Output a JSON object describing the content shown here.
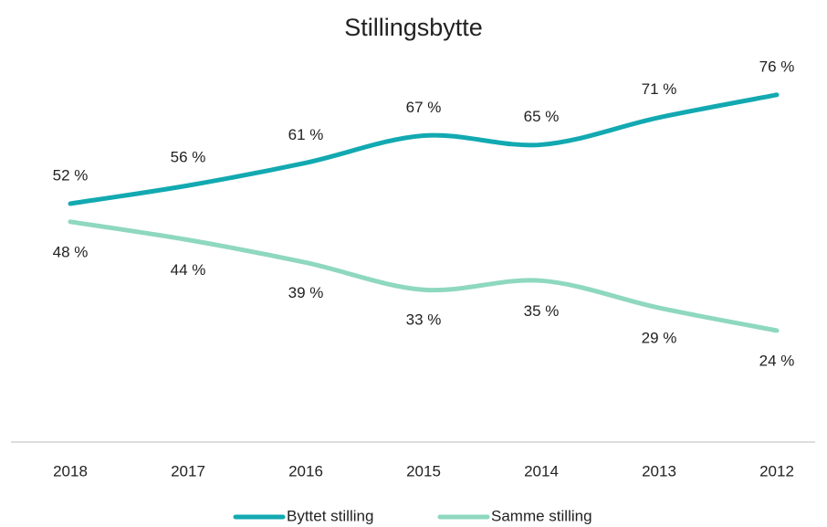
{
  "chart_data": {
    "type": "line",
    "title": "Stillingsbytte",
    "categories": [
      "2018",
      "2017",
      "2016",
      "2015",
      "2014",
      "2013",
      "2012"
    ],
    "series": [
      {
        "name": "Byttet stilling",
        "color": "#12a9b1",
        "values": [
          52,
          56,
          61,
          67,
          65,
          71,
          76
        ],
        "value_labels": [
          "52 %",
          "56 %",
          "61 %",
          "67 %",
          "65 %",
          "71 %",
          "76 %"
        ]
      },
      {
        "name": "Samme stilling",
        "color": "#8ed8bf",
        "values": [
          48,
          44,
          39,
          33,
          35,
          29,
          24
        ],
        "value_labels": [
          "48 %",
          "44 %",
          "39 %",
          "33 %",
          "35 %",
          "29 %",
          "24 %"
        ]
      }
    ],
    "ylim": [
      0,
      80
    ],
    "legend": "bottom"
  }
}
